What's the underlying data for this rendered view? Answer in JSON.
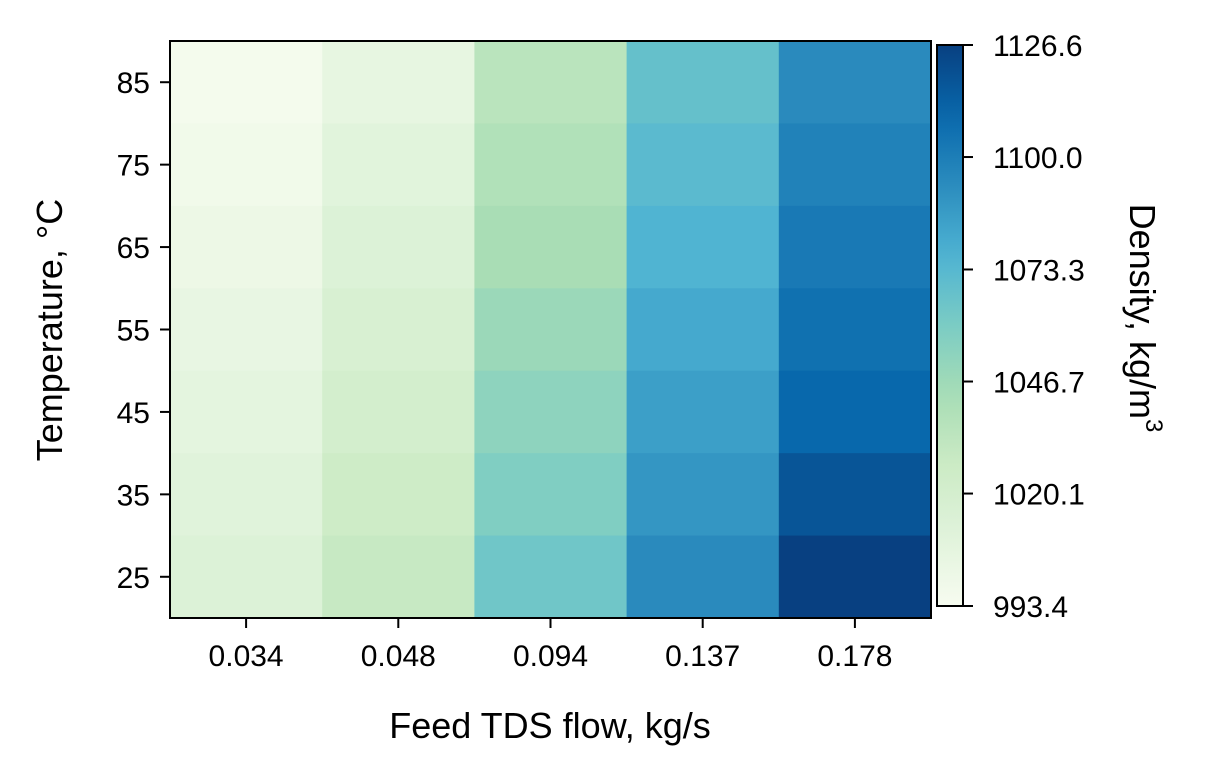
{
  "chart_data": {
    "type": "heatmap",
    "title": "",
    "xlabel": "Feed TDS flow, kg/s",
    "ylabel": "Temperature, °C",
    "x": [
      "0.034",
      "0.048",
      "0.094",
      "0.137",
      "0.178"
    ],
    "y": [
      "85",
      "75",
      "65",
      "55",
      "45",
      "35",
      "25"
    ],
    "values": [
      [
        995.5,
        1005.0,
        1035.0,
        1068.0,
        1094.0
      ],
      [
        998.0,
        1009.0,
        1039.0,
        1072.0,
        1098.0
      ],
      [
        1001.0,
        1013.0,
        1043.0,
        1076.0,
        1102.0
      ],
      [
        1004.0,
        1017.0,
        1048.0,
        1081.0,
        1106.0
      ],
      [
        1007.0,
        1021.0,
        1053.0,
        1085.0,
        1110.0
      ],
      [
        1010.0,
        1025.0,
        1058.0,
        1089.0,
        1118.0
      ],
      [
        1013.0,
        1029.0,
        1064.0,
        1094.0,
        1126.6
      ]
    ],
    "colormap": "GnBu",
    "colorbar": {
      "label": "Density, kg/m",
      "label_superscript": "3",
      "min": 993.4,
      "max": 1126.6,
      "ticks": [
        "993.4",
        "1020.1",
        "1046.7",
        "1073.3",
        "1100.0",
        "1126.6"
      ]
    },
    "grid": false,
    "legend": "none"
  }
}
